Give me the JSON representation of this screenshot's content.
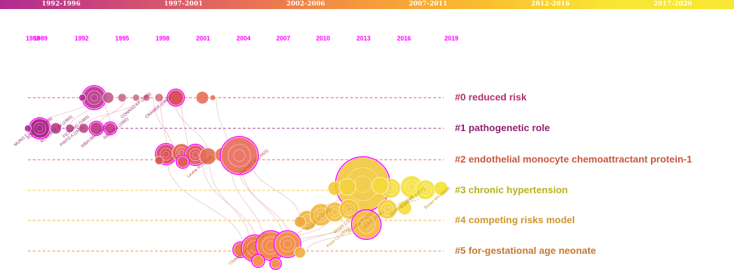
{
  "periods": [
    {
      "label": "1992-1996",
      "color": "#b02c92"
    },
    {
      "label": "1997-2001",
      "color": "#cf4b76"
    },
    {
      "label": "2002-2006",
      "color": "#e86f58"
    },
    {
      "label": "2007-2011",
      "color": "#f59a3b"
    },
    {
      "label": "2012-2016",
      "color": "#fbbf2e"
    },
    {
      "label": "2017-2020",
      "color": "#f7e633"
    }
  ],
  "years": [
    "1988",
    "1989",
    "1992",
    "1995",
    "1998",
    "2001",
    "2004",
    "2007",
    "2010",
    "2013",
    "2016",
    "2019"
  ],
  "clusters": [
    {
      "id": "#0",
      "label": "#0 reduced risk",
      "color": "#b0306e"
    },
    {
      "id": "#1",
      "label": "#1 pathogenetic role",
      "color": "#8f1e6f"
    },
    {
      "id": "#2",
      "label": "#2 endothelial monocyte chemoattractant protein-1",
      "color": "#c8573b"
    },
    {
      "id": "#3",
      "label": "#3 chronic hypertension",
      "color": "#b6b21a"
    },
    {
      "id": "#4",
      "label": "#4 competing risks model",
      "color": "#d1962b"
    },
    {
      "id": "#5",
      "label": "#5 for-gestational age neonate",
      "color": "#c9782c"
    }
  ],
  "colors": {
    "magenta": "#ff00ff",
    "purple": "#a5307f",
    "red": "#d9584c",
    "orange": "#f0a43c",
    "yellow": "#f2e23a",
    "link": "#e7b3b3"
  },
  "node_labels": [
    "MURO T (1988)",
    "SCHIFF E (1989)",
    "PINTO A (1991)",
    "SIBAI BM (1993)",
    "FICHLING (1993)",
    "SIBAI BM (1992)",
    "CONRAD KP (1993)",
    "CRAMER (1997)",
    "ROBERTS JM (1993)",
    "Levine RJ (2004)",
    "Chaiworapongsa T (2005)",
    "Maynard SE (2003)",
    "Poon LC (2010)",
    "Akolekar R (2013)",
    "Tan MY (2018)",
    "Rolnik DL (2017)",
    "Brown MA (2018)",
    "Magee LA (2015)",
    "Zeisler H (2016)",
    "Wright D (2015)"
  ]
}
